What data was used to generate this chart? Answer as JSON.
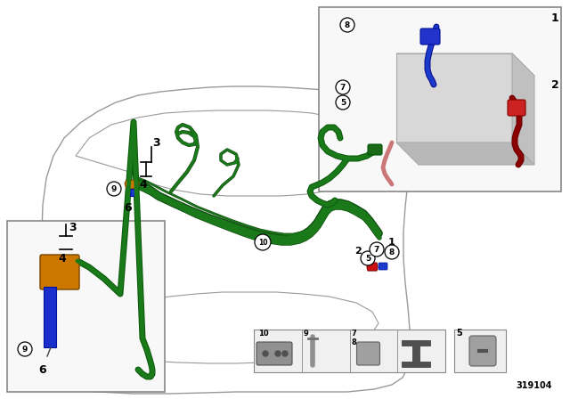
{
  "background_color": "#ffffff",
  "part_number": "319104",
  "car_outline_color": "#999999",
  "cable_green": "#1a7a1a",
  "cable_dark_green": "#145014",
  "cable_red": "#8b0000",
  "cable_pink": "#cc6666",
  "cable_blue": "#1a3acc",
  "orange_color": "#cc7700",
  "blue_part": "#1a2ecc",
  "red_part": "#cc1111",
  "gray_light": "#d8d8d8",
  "gray_med": "#b0b0b0",
  "gray_dark": "#888888",
  "box_bg": "#f5f5f5",
  "lw_car": 1.0,
  "lw_cable_main": 5,
  "lw_cable_branch": 3
}
